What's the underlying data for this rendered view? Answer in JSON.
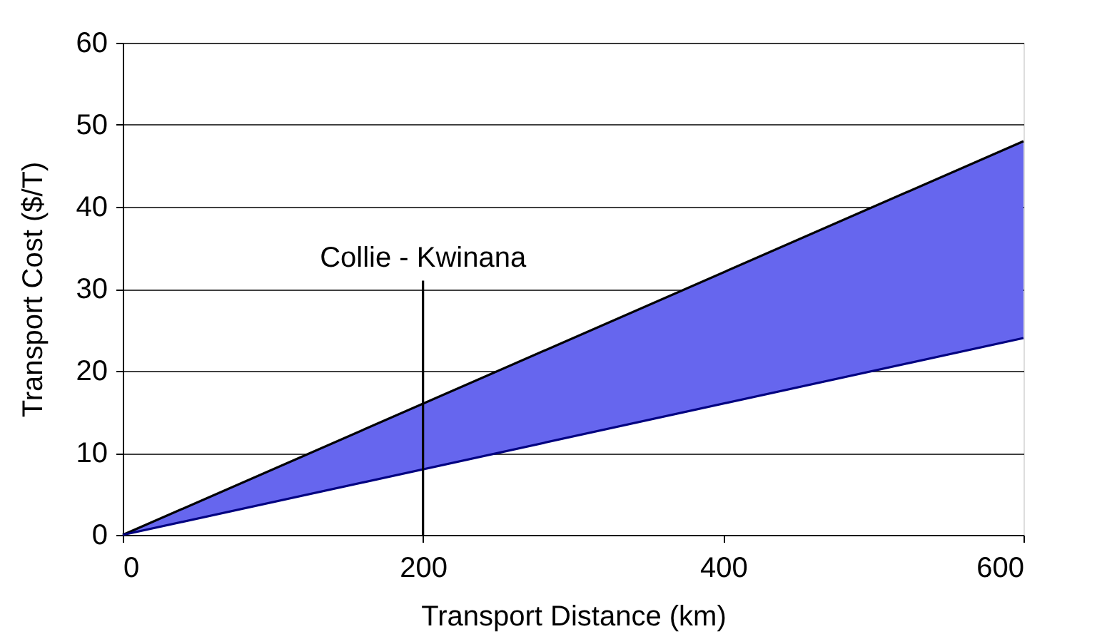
{
  "chart_data": {
    "type": "line",
    "xlabel": "Transport Distance (km)",
    "ylabel": "Transport Cost ($/T)",
    "x": [
      0,
      600
    ],
    "series": [
      {
        "color": "#000000",
        "values": [
          0,
          48
        ],
        "lower": [
          0,
          24
        ],
        "upper": [
          0,
          48
        ]
      },
      {
        "color": "#000080",
        "values": [
          0,
          24
        ]
      },
      {
        "color": "#000000",
        "x": [
          200,
          200
        ],
        "values": [
          0,
          31
        ]
      }
    ],
    "annotations": [
      "Collie - Kwinana"
    ],
    "xlim": [
      0,
      600
    ],
    "xticks": [
      0,
      200,
      400,
      600
    ],
    "ylim": [
      0,
      60
    ],
    "yticks": [
      0,
      10,
      20,
      30,
      40,
      50,
      60
    ],
    "grid": "y",
    "marker": "none",
    "line_style": "solid"
  }
}
